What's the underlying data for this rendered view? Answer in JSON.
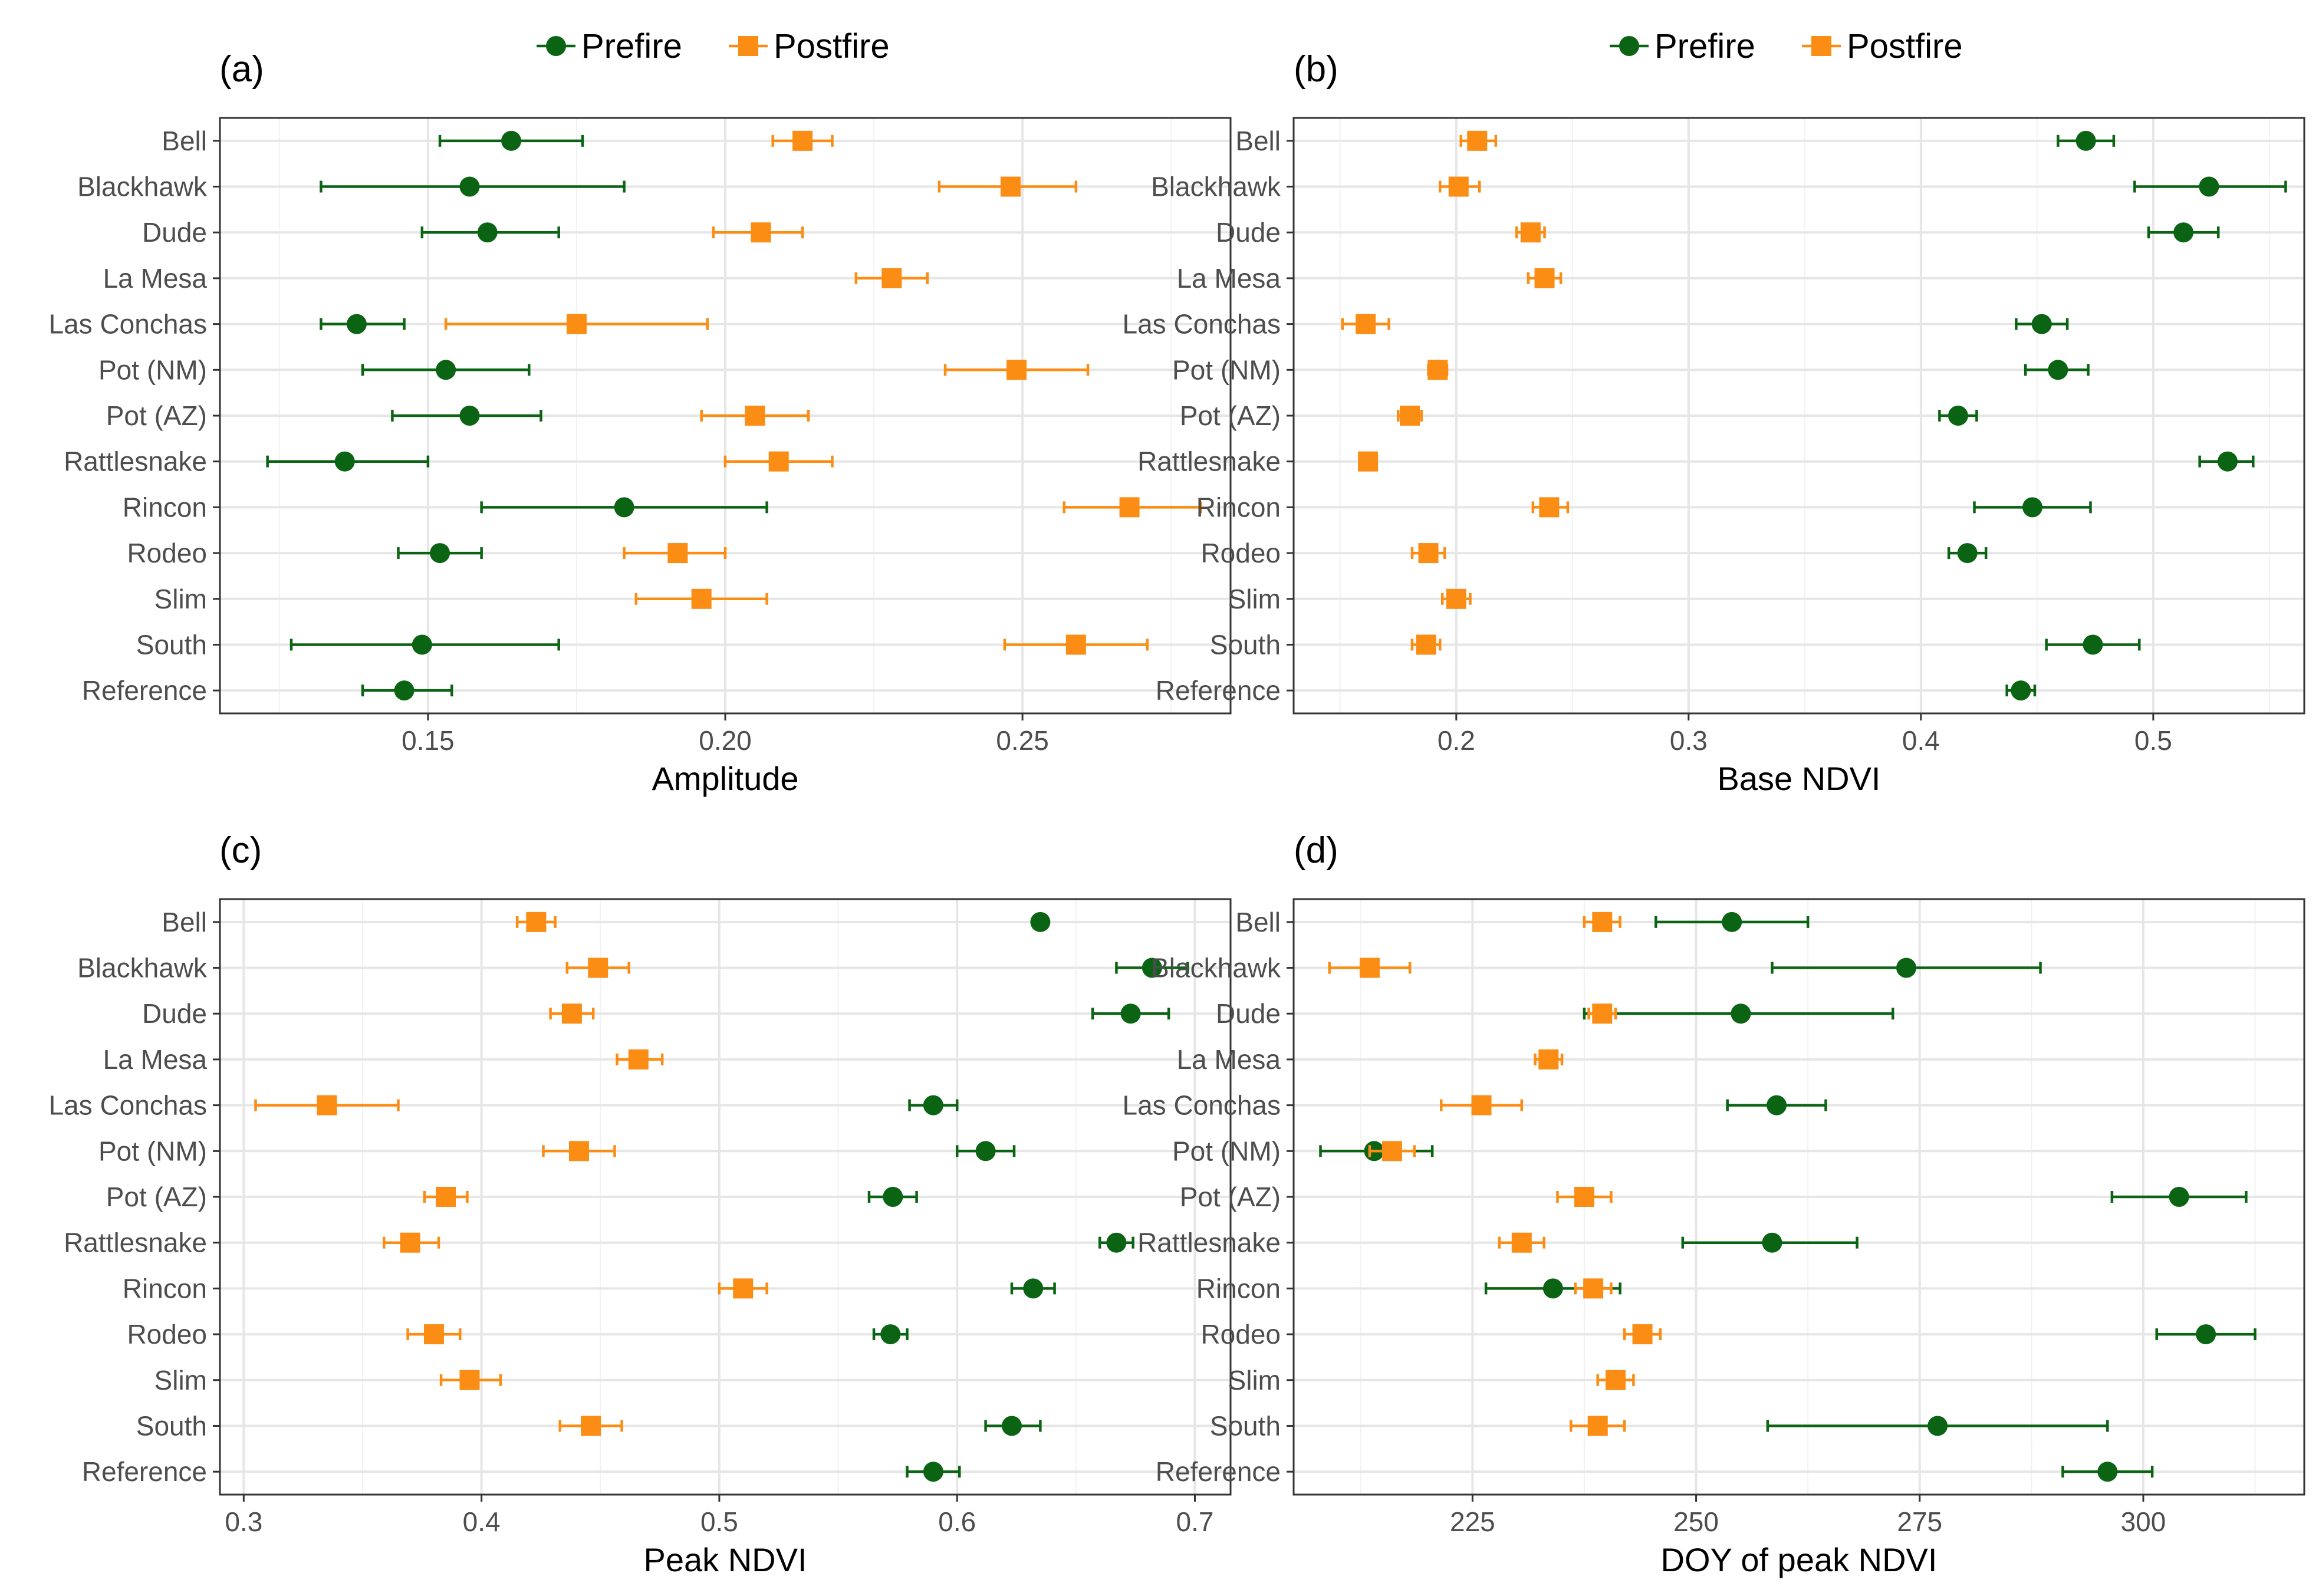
{
  "categories": [
    "Bell",
    "Blackhawk",
    "Dude",
    "La Mesa",
    "Las Conchas",
    "Pot (NM)",
    "Pot (AZ)",
    "Rattlesnake",
    "Rincon",
    "Rodeo",
    "Slim",
    "South",
    "Reference"
  ],
  "legend": {
    "prefire": {
      "label": "Prefire",
      "color": "#0b6413",
      "marker": "circle"
    },
    "postfire": {
      "label": "Postfire",
      "color": "#fb8c14",
      "marker": "square"
    }
  },
  "chart_data": [
    {
      "type": "scatter",
      "panel_label": "(a)",
      "xlabel": "Amplitude",
      "xlim": [
        0.115,
        0.285
      ],
      "xticks": [
        0.15,
        0.2,
        0.25
      ],
      "xtick_labels": [
        "0.15",
        "0.20",
        "0.25"
      ],
      "series": [
        {
          "name": "Prefire",
          "points": [
            {
              "category": "Bell",
              "value": 0.164,
              "lo": 0.152,
              "hi": 0.176
            },
            {
              "category": "Blackhawk",
              "value": 0.157,
              "lo": 0.132,
              "hi": 0.183
            },
            {
              "category": "Dude",
              "value": 0.16,
              "lo": 0.149,
              "hi": 0.172
            },
            {
              "category": "Las Conchas",
              "value": 0.138,
              "lo": 0.132,
              "hi": 0.146
            },
            {
              "category": "Pot (NM)",
              "value": 0.153,
              "lo": 0.139,
              "hi": 0.167
            },
            {
              "category": "Pot (AZ)",
              "value": 0.157,
              "lo": 0.144,
              "hi": 0.169
            },
            {
              "category": "Rattlesnake",
              "value": 0.136,
              "lo": 0.123,
              "hi": 0.15
            },
            {
              "category": "Rincon",
              "value": 0.183,
              "lo": 0.159,
              "hi": 0.207
            },
            {
              "category": "Rodeo",
              "value": 0.152,
              "lo": 0.145,
              "hi": 0.159
            },
            {
              "category": "South",
              "value": 0.149,
              "lo": 0.127,
              "hi": 0.172
            },
            {
              "category": "Reference",
              "value": 0.146,
              "lo": 0.139,
              "hi": 0.154
            }
          ]
        },
        {
          "name": "Postfire",
          "points": [
            {
              "category": "Bell",
              "value": 0.213,
              "lo": 0.208,
              "hi": 0.218
            },
            {
              "category": "Blackhawk",
              "value": 0.248,
              "lo": 0.236,
              "hi": 0.259
            },
            {
              "category": "Dude",
              "value": 0.206,
              "lo": 0.198,
              "hi": 0.213
            },
            {
              "category": "La Mesa",
              "value": 0.228,
              "lo": 0.222,
              "hi": 0.234
            },
            {
              "category": "Las Conchas",
              "value": 0.175,
              "lo": 0.153,
              "hi": 0.197
            },
            {
              "category": "Pot (NM)",
              "value": 0.249,
              "lo": 0.237,
              "hi": 0.261
            },
            {
              "category": "Pot (AZ)",
              "value": 0.205,
              "lo": 0.196,
              "hi": 0.214
            },
            {
              "category": "Rattlesnake",
              "value": 0.209,
              "lo": 0.2,
              "hi": 0.218
            },
            {
              "category": "Rincon",
              "value": 0.268,
              "lo": 0.257,
              "hi": 0.28
            },
            {
              "category": "Rodeo",
              "value": 0.192,
              "lo": 0.183,
              "hi": 0.2
            },
            {
              "category": "Slim",
              "value": 0.196,
              "lo": 0.185,
              "hi": 0.207
            },
            {
              "category": "South",
              "value": 0.259,
              "lo": 0.247,
              "hi": 0.271
            }
          ]
        }
      ]
    },
    {
      "type": "scatter",
      "panel_label": "(b)",
      "xlabel": "Base NDVI",
      "xlim": [
        0.13,
        0.565
      ],
      "xticks": [
        0.2,
        0.3,
        0.4,
        0.5
      ],
      "xtick_labels": [
        "0.2",
        "0.3",
        "0.4",
        "0.5"
      ],
      "series": [
        {
          "name": "Prefire",
          "points": [
            {
              "category": "Bell",
              "value": 0.471,
              "lo": 0.459,
              "hi": 0.483
            },
            {
              "category": "Blackhawk",
              "value": 0.524,
              "lo": 0.492,
              "hi": 0.557
            },
            {
              "category": "Dude",
              "value": 0.513,
              "lo": 0.498,
              "hi": 0.528
            },
            {
              "category": "Las Conchas",
              "value": 0.452,
              "lo": 0.441,
              "hi": 0.463
            },
            {
              "category": "Pot (NM)",
              "value": 0.459,
              "lo": 0.445,
              "hi": 0.472
            },
            {
              "category": "Pot (AZ)",
              "value": 0.416,
              "lo": 0.408,
              "hi": 0.424
            },
            {
              "category": "Rattlesnake",
              "value": 0.532,
              "lo": 0.52,
              "hi": 0.543
            },
            {
              "category": "Rincon",
              "value": 0.448,
              "lo": 0.423,
              "hi": 0.473
            },
            {
              "category": "Rodeo",
              "value": 0.42,
              "lo": 0.412,
              "hi": 0.428
            },
            {
              "category": "South",
              "value": 0.474,
              "lo": 0.454,
              "hi": 0.494
            },
            {
              "category": "Reference",
              "value": 0.443,
              "lo": 0.437,
              "hi": 0.449
            }
          ]
        },
        {
          "name": "Postfire",
          "points": [
            {
              "category": "Bell",
              "value": 0.209,
              "lo": 0.202,
              "hi": 0.217
            },
            {
              "category": "Blackhawk",
              "value": 0.201,
              "lo": 0.193,
              "hi": 0.21
            },
            {
              "category": "Dude",
              "value": 0.232,
              "lo": 0.226,
              "hi": 0.238
            },
            {
              "category": "La Mesa",
              "value": 0.238,
              "lo": 0.231,
              "hi": 0.245
            },
            {
              "category": "Las Conchas",
              "value": 0.161,
              "lo": 0.151,
              "hi": 0.171
            },
            {
              "category": "Pot (NM)",
              "value": 0.192,
              "lo": 0.188,
              "hi": 0.196
            },
            {
              "category": "Pot (AZ)",
              "value": 0.18,
              "lo": 0.175,
              "hi": 0.185
            },
            {
              "category": "Rattlesnake",
              "value": 0.162,
              "lo": 0.159,
              "hi": 0.165
            },
            {
              "category": "Rincon",
              "value": 0.24,
              "lo": 0.233,
              "hi": 0.248
            },
            {
              "category": "Rodeo",
              "value": 0.188,
              "lo": 0.181,
              "hi": 0.195
            },
            {
              "category": "Slim",
              "value": 0.2,
              "lo": 0.194,
              "hi": 0.206
            },
            {
              "category": "South",
              "value": 0.187,
              "lo": 0.181,
              "hi": 0.193
            }
          ]
        }
      ]
    },
    {
      "type": "scatter",
      "panel_label": "(c)",
      "xlabel": "Peak NDVI",
      "xlim": [
        0.29,
        0.715
      ],
      "xticks": [
        0.3,
        0.4,
        0.5,
        0.6,
        0.7
      ],
      "xtick_labels": [
        "0.3",
        "0.4",
        "0.5",
        "0.6",
        "0.7"
      ],
      "series": [
        {
          "name": "Prefire",
          "points": [
            {
              "category": "Bell",
              "value": 0.635,
              "lo": 0.633,
              "hi": 0.637
            },
            {
              "category": "Blackhawk",
              "value": 0.682,
              "lo": 0.667,
              "hi": 0.697
            },
            {
              "category": "Dude",
              "value": 0.673,
              "lo": 0.657,
              "hi": 0.689
            },
            {
              "category": "Las Conchas",
              "value": 0.59,
              "lo": 0.58,
              "hi": 0.6
            },
            {
              "category": "Pot (NM)",
              "value": 0.612,
              "lo": 0.6,
              "hi": 0.624
            },
            {
              "category": "Pot (AZ)",
              "value": 0.573,
              "lo": 0.563,
              "hi": 0.583
            },
            {
              "category": "Rattlesnake",
              "value": 0.667,
              "lo": 0.66,
              "hi": 0.674
            },
            {
              "category": "Rincon",
              "value": 0.632,
              "lo": 0.623,
              "hi": 0.641
            },
            {
              "category": "Rodeo",
              "value": 0.572,
              "lo": 0.565,
              "hi": 0.579
            },
            {
              "category": "South",
              "value": 0.623,
              "lo": 0.612,
              "hi": 0.635
            },
            {
              "category": "Reference",
              "value": 0.59,
              "lo": 0.579,
              "hi": 0.601
            }
          ]
        },
        {
          "name": "Postfire",
          "points": [
            {
              "category": "Bell",
              "value": 0.423,
              "lo": 0.415,
              "hi": 0.431
            },
            {
              "category": "Blackhawk",
              "value": 0.449,
              "lo": 0.436,
              "hi": 0.462
            },
            {
              "category": "Dude",
              "value": 0.438,
              "lo": 0.429,
              "hi": 0.447
            },
            {
              "category": "La Mesa",
              "value": 0.466,
              "lo": 0.457,
              "hi": 0.476
            },
            {
              "category": "Las Conchas",
              "value": 0.335,
              "lo": 0.305,
              "hi": 0.365
            },
            {
              "category": "Pot (NM)",
              "value": 0.441,
              "lo": 0.426,
              "hi": 0.456
            },
            {
              "category": "Pot (AZ)",
              "value": 0.385,
              "lo": 0.376,
              "hi": 0.394
            },
            {
              "category": "Rattlesnake",
              "value": 0.37,
              "lo": 0.359,
              "hi": 0.382
            },
            {
              "category": "Rincon",
              "value": 0.51,
              "lo": 0.5,
              "hi": 0.52
            },
            {
              "category": "Rodeo",
              "value": 0.38,
              "lo": 0.369,
              "hi": 0.391
            },
            {
              "category": "Slim",
              "value": 0.395,
              "lo": 0.383,
              "hi": 0.408
            },
            {
              "category": "South",
              "value": 0.446,
              "lo": 0.433,
              "hi": 0.459
            }
          ]
        }
      ]
    },
    {
      "type": "scatter",
      "panel_label": "(d)",
      "xlabel": "DOY of peak NDVI",
      "xlim": [
        205,
        318
      ],
      "xticks": [
        225,
        250,
        275,
        300
      ],
      "xtick_labels": [
        "225",
        "250",
        "275",
        "300"
      ],
      "series": [
        {
          "name": "Prefire",
          "points": [
            {
              "category": "Bell",
              "value": 254,
              "lo": 245.5,
              "hi": 262.5
            },
            {
              "category": "Blackhawk",
              "value": 273.5,
              "lo": 258.5,
              "hi": 288.5
            },
            {
              "category": "Dude",
              "value": 255,
              "lo": 237.5,
              "hi": 272
            },
            {
              "category": "Las Conchas",
              "value": 259,
              "lo": 253.5,
              "hi": 264.5
            },
            {
              "category": "Pot (NM)",
              "value": 214,
              "lo": 208,
              "hi": 220.5
            },
            {
              "category": "Pot (AZ)",
              "value": 304,
              "lo": 296.5,
              "hi": 311.5
            },
            {
              "category": "Rattlesnake",
              "value": 258.5,
              "lo": 248.5,
              "hi": 268
            },
            {
              "category": "Rincon",
              "value": 234,
              "lo": 226.5,
              "hi": 241.5
            },
            {
              "category": "Rodeo",
              "value": 307,
              "lo": 301.5,
              "hi": 312.5
            },
            {
              "category": "South",
              "value": 277,
              "lo": 258,
              "hi": 296
            },
            {
              "category": "Reference",
              "value": 296,
              "lo": 291,
              "hi": 301
            }
          ]
        },
        {
          "name": "Postfire",
          "points": [
            {
              "category": "Bell",
              "value": 239.5,
              "lo": 237.5,
              "hi": 241.5
            },
            {
              "category": "Blackhawk",
              "value": 213.5,
              "lo": 209,
              "hi": 218
            },
            {
              "category": "Dude",
              "value": 239.5,
              "lo": 238,
              "hi": 241
            },
            {
              "category": "La Mesa",
              "value": 233.5,
              "lo": 232,
              "hi": 235
            },
            {
              "category": "Las Conchas",
              "value": 226,
              "lo": 221.5,
              "hi": 230.5
            },
            {
              "category": "Pot (NM)",
              "value": 216,
              "lo": 213.5,
              "hi": 218.5
            },
            {
              "category": "Pot (AZ)",
              "value": 237.5,
              "lo": 234.5,
              "hi": 240.5
            },
            {
              "category": "Rattlesnake",
              "value": 230.5,
              "lo": 228,
              "hi": 233
            },
            {
              "category": "Rincon",
              "value": 238.5,
              "lo": 236.5,
              "hi": 240.5
            },
            {
              "category": "Rodeo",
              "value": 244,
              "lo": 242,
              "hi": 246
            },
            {
              "category": "Slim",
              "value": 241,
              "lo": 239,
              "hi": 243
            },
            {
              "category": "South",
              "value": 239,
              "lo": 236,
              "hi": 242
            }
          ]
        }
      ]
    }
  ]
}
